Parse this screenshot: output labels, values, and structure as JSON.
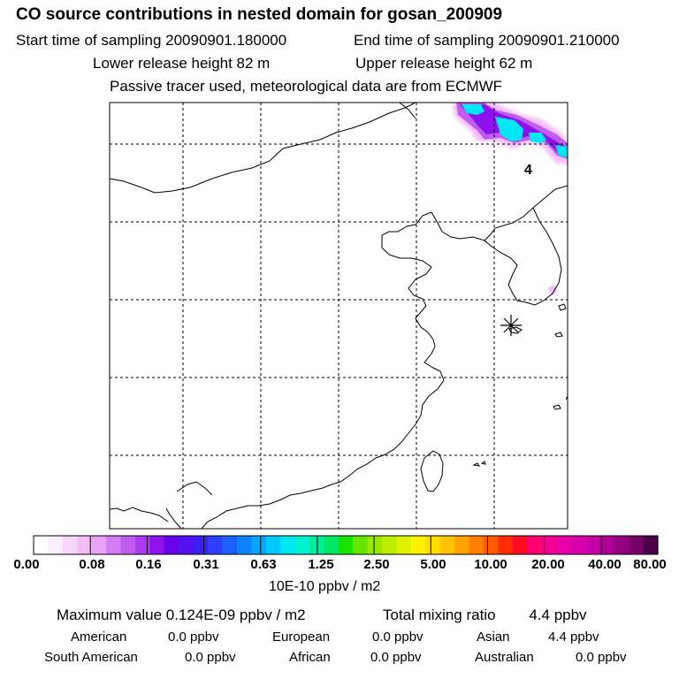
{
  "header": {
    "title": "CO  source contributions in nested domain for gosan_200909",
    "start_label": "Start time of sampling 20090901.180000",
    "end_label": "End time of sampling 20090901.210000",
    "lower_label": "Lower release height   82 m",
    "upper_label": "Upper release height   62 m",
    "tracer_note": "Passive tracer used, meteorological data are from ECMWF"
  },
  "map": {
    "marker_label": "4",
    "site_symbol": "asterisk"
  },
  "colorbar": {
    "colors": [
      "#ffffff",
      "#fcedfd",
      "#f8d6fc",
      "#f3bdfa",
      "#e9a0f7",
      "#d27df3",
      "#c05df0",
      "#ad3aef",
      "#8f12ee",
      "#6a00ea",
      "#5212ef",
      "#3c1ff4",
      "#2d40f8",
      "#1c60fb",
      "#1082fd",
      "#05a6ff",
      "#00c8fe",
      "#00e8f3",
      "#00f4d4",
      "#00ee9c",
      "#00e766",
      "#19e200",
      "#64e600",
      "#9ae800",
      "#bdef00",
      "#ddf200",
      "#fff200",
      "#ffdd00",
      "#ffc200",
      "#ffa300",
      "#ff8000",
      "#ff5a00",
      "#ff2c00",
      "#ff0a23",
      "#ff0070",
      "#f40092",
      "#e800a6",
      "#d800ad",
      "#c600a6",
      "#ad0095",
      "#92007f",
      "#770069",
      "#4c0047"
    ],
    "tick_labels": [
      "0.00",
      "0.08",
      "0.16",
      "0.31",
      "0.63",
      "1.25",
      "2.50",
      "5.00",
      "10.00",
      "20.00",
      "40.00",
      "80.00"
    ],
    "units": "10E-10 ppbv / m2"
  },
  "footer": {
    "max_value": "Maximum value  0.124E-09 ppbv / m2",
    "total_mixing": "Total mixing ratio        4.4 ppbv",
    "sources": [
      {
        "name": "American",
        "value": "0.0 ppbv"
      },
      {
        "name": "European",
        "value": "0.0 ppbv"
      },
      {
        "name": "Asian",
        "value": "4.4 ppbv"
      },
      {
        "name": "South American",
        "value": "0.0 ppbv"
      },
      {
        "name": "African",
        "value": "0.0 ppbv"
      },
      {
        "name": "Australian",
        "value": "0.0 ppbv"
      }
    ]
  }
}
